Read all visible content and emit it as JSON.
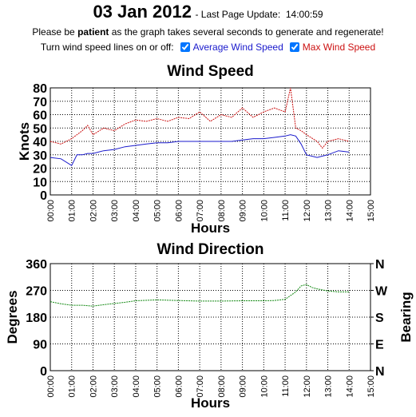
{
  "header": {
    "date": "03 Jan 2012",
    "update": "- Last Page Update:  14:00:59",
    "notice": [
      "Please be ",
      "patient",
      " as the graph takes several seconds to generate and regenerate!"
    ],
    "toggle_label": "Turn wind speed lines on or off:"
  },
  "chart_data": [
    {
      "type": "line",
      "title": "Wind Speed",
      "x_label": "Hours",
      "y_label": "Knots",
      "x": [
        0,
        0.5,
        1,
        1.25,
        1.5,
        1.75,
        2,
        2.5,
        3,
        3.5,
        4,
        4.5,
        5,
        5.5,
        6,
        6.5,
        7,
        7.5,
        8,
        8.5,
        9,
        9.5,
        10,
        10.5,
        11,
        11.25,
        11.5,
        11.75,
        12,
        12.5,
        12.75,
        13,
        13.5,
        14
      ],
      "series": [
        {
          "name": "Average Wind Speed",
          "color": "#1a1acc",
          "values": [
            28,
            27,
            22,
            30,
            30,
            31,
            31,
            33,
            34,
            36,
            37,
            38,
            39,
            39,
            40,
            40,
            40,
            40,
            40,
            40,
            41,
            42,
            42,
            43,
            44,
            45,
            44,
            38,
            30,
            28,
            29,
            30,
            33,
            32
          ]
        },
        {
          "name": "Max Wind Speed",
          "color": "#cc1111",
          "values": [
            40,
            38,
            42,
            45,
            48,
            52,
            45,
            50,
            48,
            53,
            56,
            55,
            57,
            55,
            58,
            57,
            62,
            55,
            60,
            58,
            65,
            58,
            62,
            65,
            62,
            80,
            50,
            48,
            45,
            40,
            35,
            40,
            42,
            40
          ]
        }
      ],
      "xlim": [
        0,
        15
      ],
      "xticks": [
        {
          "value": 0,
          "label": "00:00"
        },
        {
          "value": 1,
          "label": "01:00"
        },
        {
          "value": 2,
          "label": "02:00"
        },
        {
          "value": 3,
          "label": "03:00"
        },
        {
          "value": 4,
          "label": "04:00"
        },
        {
          "value": 5,
          "label": "05:00"
        },
        {
          "value": 6,
          "label": "06:00"
        },
        {
          "value": 7,
          "label": "07:00"
        },
        {
          "value": 8,
          "label": "08:00"
        },
        {
          "value": 9,
          "label": "09:00"
        },
        {
          "value": 10,
          "label": "10:00"
        },
        {
          "value": 11,
          "label": "11:00"
        },
        {
          "value": 12,
          "label": "12:00"
        },
        {
          "value": 13,
          "label": "13:00"
        },
        {
          "value": 14,
          "label": "14:00"
        },
        {
          "value": 15,
          "label": "15:00"
        }
      ],
      "ylim": [
        0,
        80
      ],
      "yticks": [
        0,
        10,
        20,
        30,
        40,
        50,
        60,
        70,
        80
      ],
      "grid": true
    },
    {
      "type": "line",
      "title": "Wind Direction",
      "x_label": "Hours",
      "y_label": "Degrees",
      "y2_label": "Bearing",
      "x": [
        0,
        0.5,
        1,
        1.5,
        2,
        2.5,
        3,
        3.5,
        4,
        5,
        6,
        7,
        8,
        9,
        10,
        10.5,
        11,
        11.5,
        11.75,
        12,
        12.25,
        12.5,
        13,
        13.5,
        14
      ],
      "series": [
        {
          "name": "Wind Direction",
          "color": "#118811",
          "values": [
            232,
            225,
            220,
            220,
            217,
            222,
            226,
            230,
            235,
            238,
            236,
            234,
            234,
            235,
            235,
            236,
            240,
            265,
            285,
            290,
            280,
            275,
            268,
            265,
            265
          ]
        }
      ],
      "xlim": [
        0,
        15
      ],
      "xticks": [
        {
          "value": 0,
          "label": "00:00"
        },
        {
          "value": 1,
          "label": "01:00"
        },
        {
          "value": 2,
          "label": "02:00"
        },
        {
          "value": 3,
          "label": "03:00"
        },
        {
          "value": 4,
          "label": "04:00"
        },
        {
          "value": 5,
          "label": "05:00"
        },
        {
          "value": 6,
          "label": "06:00"
        },
        {
          "value": 7,
          "label": "07:00"
        },
        {
          "value": 8,
          "label": "08:00"
        },
        {
          "value": 9,
          "label": "09:00"
        },
        {
          "value": 10,
          "label": "10:00"
        },
        {
          "value": 11,
          "label": "11:00"
        },
        {
          "value": 12,
          "label": "12:00"
        },
        {
          "value": 13,
          "label": "13:00"
        },
        {
          "value": 14,
          "label": "14:00"
        },
        {
          "value": 15,
          "label": "15:00"
        }
      ],
      "ylim": [
        0,
        360
      ],
      "yticks": [
        0,
        90,
        180,
        270,
        360
      ],
      "y2lim": [
        0,
        360
      ],
      "y2ticks": [
        {
          "value": 0,
          "label": "N"
        },
        {
          "value": 90,
          "label": "E"
        },
        {
          "value": 180,
          "label": "S"
        },
        {
          "value": 270,
          "label": "W"
        },
        {
          "value": 360,
          "label": "N"
        }
      ],
      "grid": true
    }
  ]
}
